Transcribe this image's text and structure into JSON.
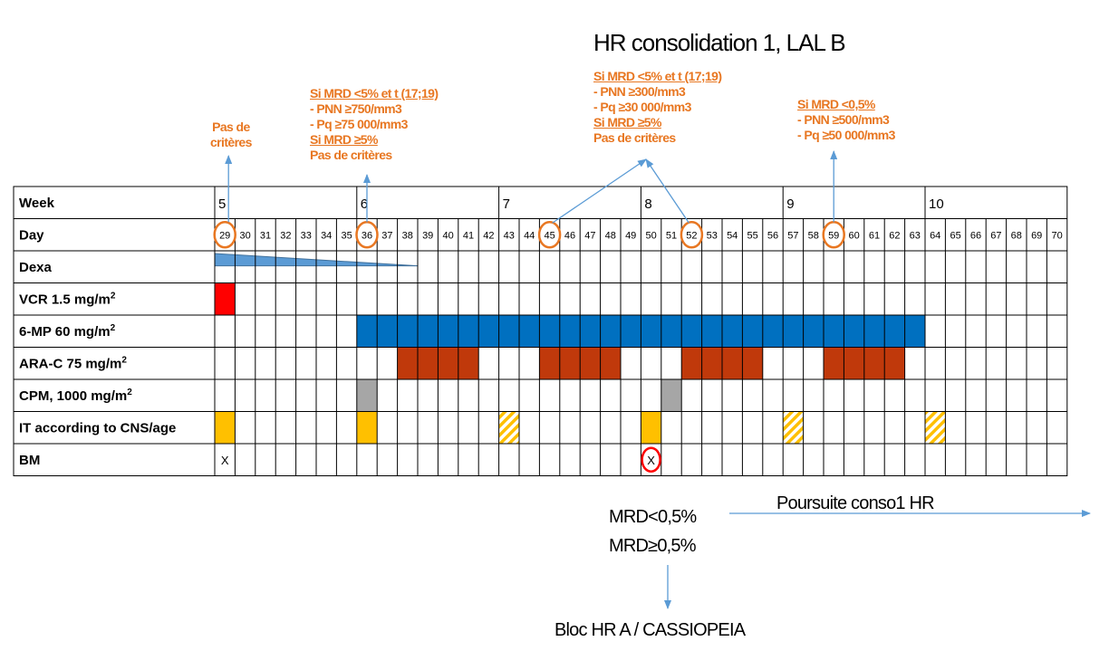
{
  "title": "HR consolidation 1, LAL B",
  "table": {
    "headers": {
      "week": "Week",
      "day": "Day"
    },
    "weeks": [
      {
        "label": "5",
        "start_day": 29
      },
      {
        "label": "6",
        "start_day": 36
      },
      {
        "label": "7",
        "start_day": 43
      },
      {
        "label": "8",
        "start_day": 50
      },
      {
        "label": "9",
        "start_day": 57
      },
      {
        "label": "10",
        "start_day": 64
      }
    ],
    "days": [
      29,
      30,
      31,
      32,
      33,
      34,
      35,
      36,
      37,
      38,
      39,
      40,
      41,
      42,
      43,
      44,
      45,
      46,
      47,
      48,
      49,
      50,
      51,
      52,
      53,
      54,
      55,
      56,
      57,
      58,
      59,
      60,
      61,
      62,
      63,
      64,
      65,
      66,
      67,
      68,
      69,
      70
    ],
    "circled_days": [
      29,
      36,
      45,
      52,
      59
    ],
    "rows": [
      {
        "label": "Dexa"
      },
      {
        "label": "VCR 1.5 mg/m",
        "sup": "2"
      },
      {
        "label": "6-MP 60 mg/m",
        "sup": "2"
      },
      {
        "label": "ARA-C 75 mg/m",
        "sup": "2"
      },
      {
        "label": "CPM, 1000 mg/m",
        "sup": "2"
      },
      {
        "label": "IT according to CNS/age"
      },
      {
        "label": "BM"
      }
    ],
    "bm_marks": [
      {
        "day": 29,
        "text": "X",
        "circled": false
      },
      {
        "day": 50,
        "text": "X",
        "circled": true
      }
    ]
  },
  "schedule": {
    "dexa_taper": {
      "from_day": 29,
      "to_day": 38
    },
    "vcr_days": [
      29
    ],
    "mp6_range": [
      36,
      63
    ],
    "arac_days": [
      38,
      39,
      40,
      41,
      45,
      46,
      47,
      48,
      52,
      53,
      54,
      55,
      59,
      60,
      61,
      62
    ],
    "cpm_days": [
      36,
      51
    ],
    "it_solid_days": [
      29,
      36,
      50
    ],
    "it_hatched_days": [
      43,
      57,
      64
    ]
  },
  "colors": {
    "vcr": "#FF0000",
    "mp6": "#0070C0",
    "arac": "#C0390B",
    "cpm": "#A6A6A6",
    "it": "#FFC000",
    "dexa": "#5B9BD5",
    "arrow": "#5B9BD5",
    "note": "#E87722",
    "circle": "#E87722"
  },
  "notes": {
    "n1": {
      "l1": "Pas de",
      "l2": "critères"
    },
    "n2": {
      "l1": "Si MRD <5% et t (17;19)",
      "l2": "- PNN ≥750/mm3",
      "l3": "- Pq ≥75 000/mm3",
      "l4": "Si MRD ≥5%",
      "l5": "Pas de critères"
    },
    "n3": {
      "l1": "Si MRD <5% et t (17;19)",
      "l2": "- PNN ≥300/mm3",
      "l3": "-   Pq ≥30 000/mm3",
      "l4": "Si MRD ≥5%",
      "l5": "Pas de critères"
    },
    "n4": {
      "l1": "Si MRD <0,5%",
      "l2": "- PNN ≥500/mm3",
      "l3": "- Pq ≥50 000/mm3"
    }
  },
  "outcome": {
    "mrd_low": "MRD<0,5%",
    "mrd_high": "MRD≥0,5%",
    "continue": "Poursuite conso1 HR",
    "bloc": "Bloc HR A / CASSIOPEIA"
  }
}
